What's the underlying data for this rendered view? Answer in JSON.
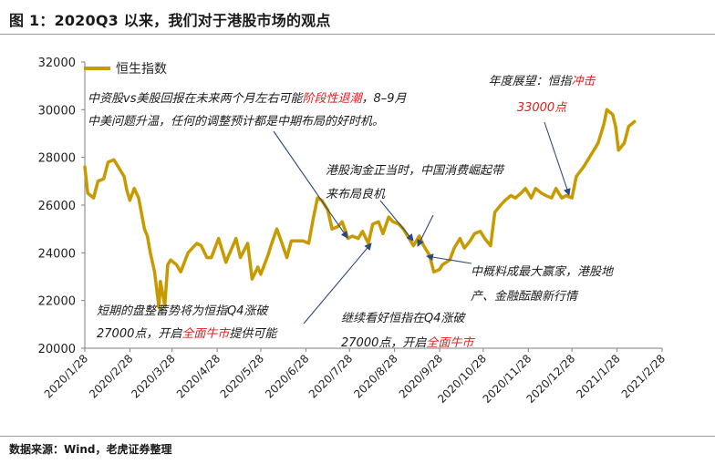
{
  "page": {
    "title": "图 1：2020Q3 以来，我们对于港股市场的观点",
    "source": "数据来源：Wind，老虎证券整理"
  },
  "colors": {
    "line": "#C79A00",
    "highlight": "#E02020",
    "arrow": "#2F4A7A",
    "axis": "#7f7f7f"
  },
  "chart_data": {
    "type": "line",
    "xlabel": "",
    "ylabel": "",
    "ylim": [
      20000,
      32000
    ],
    "yticks": [
      "20000",
      "22000",
      "24000",
      "26000",
      "28000",
      "30000",
      "32000"
    ],
    "xticks": [
      "2020/1/28",
      "2020/2/28",
      "2020/3/28",
      "2020/4/28",
      "2020/5/28",
      "2020/6/28",
      "2020/7/28",
      "2020/8/28",
      "2020/9/28",
      "2020/10/28",
      "2020/11/28",
      "2020/12/28",
      "2021/1/28",
      "2021/2/28"
    ],
    "legend": "top-left",
    "series": [
      {
        "name": "恒生指数",
        "points": [
          [
            "2020-01-28",
            27600
          ],
          [
            "2020-01-30",
            26500
          ],
          [
            "2020-02-03",
            26300
          ],
          [
            "2020-02-06",
            27000
          ],
          [
            "2020-02-10",
            27100
          ],
          [
            "2020-02-13",
            27800
          ],
          [
            "2020-02-17",
            27900
          ],
          [
            "2020-02-20",
            27600
          ],
          [
            "2020-02-24",
            27200
          ],
          [
            "2020-02-26",
            26600
          ],
          [
            "2020-02-28",
            26200
          ],
          [
            "2020-03-02",
            26700
          ],
          [
            "2020-03-05",
            26300
          ],
          [
            "2020-03-09",
            25000
          ],
          [
            "2020-03-11",
            24700
          ],
          [
            "2020-03-13",
            24000
          ],
          [
            "2020-03-16",
            23200
          ],
          [
            "2020-03-19",
            21700
          ],
          [
            "2020-03-20",
            22800
          ],
          [
            "2020-03-23",
            21800
          ],
          [
            "2020-03-25",
            23500
          ],
          [
            "2020-03-27",
            23700
          ],
          [
            "2020-03-31",
            23500
          ],
          [
            "2020-04-03",
            23200
          ],
          [
            "2020-04-08",
            24000
          ],
          [
            "2020-04-14",
            24400
          ],
          [
            "2020-04-17",
            24300
          ],
          [
            "2020-04-21",
            23800
          ],
          [
            "2020-04-24",
            23800
          ],
          [
            "2020-04-29",
            24600
          ],
          [
            "2020-05-04",
            23600
          ],
          [
            "2020-05-06",
            23900
          ],
          [
            "2020-05-11",
            24600
          ],
          [
            "2020-05-14",
            23800
          ],
          [
            "2020-05-19",
            24400
          ],
          [
            "2020-05-22",
            22900
          ],
          [
            "2020-05-26",
            23400
          ],
          [
            "2020-05-28",
            23100
          ],
          [
            "2020-06-02",
            23900
          ],
          [
            "2020-06-04",
            24300
          ],
          [
            "2020-06-08",
            25000
          ],
          [
            "2020-06-11",
            24500
          ],
          [
            "2020-06-15",
            23800
          ],
          [
            "2020-06-18",
            24500
          ],
          [
            "2020-06-22",
            24500
          ],
          [
            "2020-06-26",
            24500
          ],
          [
            "2020-06-30",
            24400
          ],
          [
            "2020-07-03",
            25400
          ],
          [
            "2020-07-06",
            26300
          ],
          [
            "2020-07-09",
            26200
          ],
          [
            "2020-07-13",
            25800
          ],
          [
            "2020-07-16",
            25000
          ],
          [
            "2020-07-20",
            25100
          ],
          [
            "2020-07-23",
            25300
          ],
          [
            "2020-07-27",
            24600
          ],
          [
            "2020-07-30",
            24700
          ],
          [
            "2020-08-03",
            24600
          ],
          [
            "2020-08-06",
            24900
          ],
          [
            "2020-08-10",
            24400
          ],
          [
            "2020-08-13",
            25200
          ],
          [
            "2020-08-17",
            25300
          ],
          [
            "2020-08-20",
            24800
          ],
          [
            "2020-08-24",
            25500
          ],
          [
            "2020-08-27",
            25300
          ],
          [
            "2020-08-31",
            25200
          ],
          [
            "2020-09-03",
            25000
          ],
          [
            "2020-09-07",
            24600
          ],
          [
            "2020-09-10",
            24300
          ],
          [
            "2020-09-14",
            24700
          ],
          [
            "2020-09-17",
            24300
          ],
          [
            "2020-09-21",
            23900
          ],
          [
            "2020-09-24",
            23200
          ],
          [
            "2020-09-28",
            23300
          ],
          [
            "2020-09-30",
            23500
          ],
          [
            "2020-10-05",
            23700
          ],
          [
            "2020-10-08",
            24200
          ],
          [
            "2020-10-12",
            24600
          ],
          [
            "2020-10-15",
            24200
          ],
          [
            "2020-10-19",
            24500
          ],
          [
            "2020-10-22",
            24800
          ],
          [
            "2020-10-26",
            24900
          ],
          [
            "2020-10-29",
            24600
          ],
          [
            "2020-11-02",
            24300
          ],
          [
            "2020-11-05",
            25700
          ],
          [
            "2020-11-09",
            26000
          ],
          [
            "2020-11-12",
            26200
          ],
          [
            "2020-11-16",
            26400
          ],
          [
            "2020-11-19",
            26300
          ],
          [
            "2020-11-23",
            26500
          ],
          [
            "2020-11-26",
            26700
          ],
          [
            "2020-11-30",
            26300
          ],
          [
            "2020-12-03",
            26700
          ],
          [
            "2020-12-07",
            26500
          ],
          [
            "2020-12-10",
            26400
          ],
          [
            "2020-12-14",
            26300
          ],
          [
            "2020-12-17",
            26700
          ],
          [
            "2020-12-21",
            26300
          ],
          [
            "2020-12-24",
            26400
          ],
          [
            "2020-12-28",
            26300
          ],
          [
            "2020-12-31",
            27200
          ],
          [
            "2021-01-05",
            27600
          ],
          [
            "2021-01-08",
            27900
          ],
          [
            "2021-01-12",
            28300
          ],
          [
            "2021-01-15",
            28600
          ],
          [
            "2021-01-19",
            29400
          ],
          [
            "2021-01-21",
            30000
          ],
          [
            "2021-01-25",
            29800
          ],
          [
            "2021-01-27",
            29300
          ],
          [
            "2021-01-29",
            28300
          ],
          [
            "2021-02-02",
            28600
          ],
          [
            "2021-02-05",
            29300
          ],
          [
            "2021-02-09",
            29500
          ]
        ]
      }
    ],
    "annotations": {
      "top_left": {
        "line1": [
          {
            "text": "中资股vs美股回报在未来两个月左右可能",
            "highlight": false
          },
          {
            "text": "阶段性退潮",
            "highlight": true
          },
          {
            "text": "，8–9月",
            "highlight": false
          }
        ],
        "line2": [
          {
            "text": "中美问题升温，任何的调整预计都是中期布局的好时机。",
            "highlight": false
          }
        ]
      },
      "middle": {
        "line1": [
          {
            "text": "港股淘金正当时，中国消费崛起带",
            "highlight": false
          }
        ],
        "line2": [
          {
            "text": "来布局良机",
            "highlight": false
          }
        ]
      },
      "year": {
        "line1": [
          {
            "text": "年度展望：恒指",
            "highlight": false
          },
          {
            "text": "冲击",
            "highlight": true
          }
        ],
        "line2": [
          {
            "text": "33000点",
            "highlight": true
          }
        ]
      },
      "right_mid": {
        "line1": [
          {
            "text": "中概料成最大赢家，港股地",
            "highlight": false
          }
        ],
        "line2": [
          {
            "text": "产、金融酝酿新行情",
            "highlight": false
          }
        ]
      },
      "bottom_left": {
        "line1": [
          {
            "text": "短期的盘整蓄势将为恒指Q4涨破",
            "highlight": false
          }
        ],
        "line2": [
          {
            "text": "27000点，开启",
            "highlight": false
          },
          {
            "text": "全面牛市",
            "highlight": true
          },
          {
            "text": "提供可能",
            "highlight": false
          }
        ]
      },
      "bottom_mid": {
        "line1": [
          {
            "text": "继续看好恒指在Q4涨破",
            "highlight": false
          }
        ],
        "line2": [
          {
            "text": "27000点，开启",
            "highlight": false
          },
          {
            "text": "全面牛市",
            "highlight": true
          }
        ]
      }
    }
  }
}
